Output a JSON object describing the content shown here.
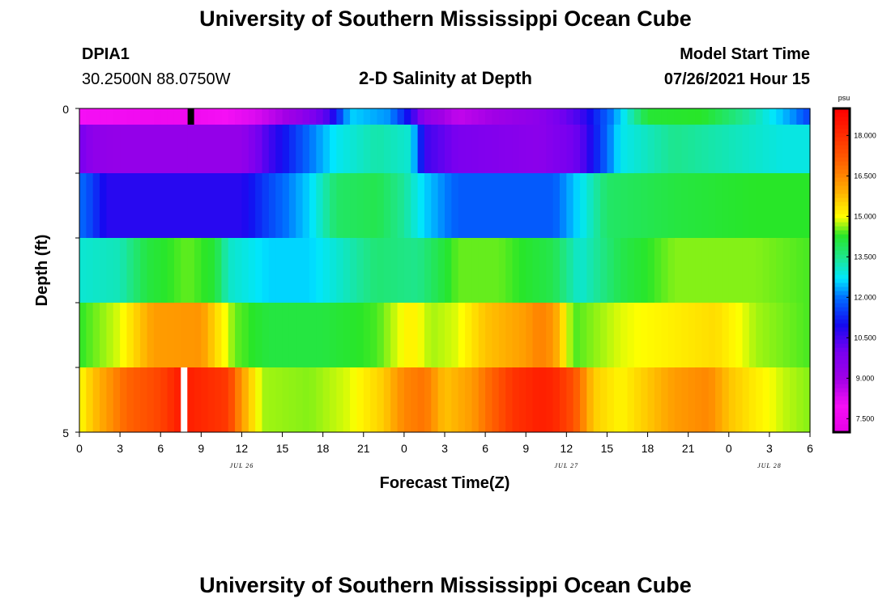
{
  "header": {
    "title_top": "University of Southern Mississippi Ocean Cube",
    "title_bottom": "University of Southern Mississippi Ocean Cube",
    "station_id": "DPIA1",
    "station_coords": "30.2500N  88.0750W",
    "plot_title": "2-D Salinity at Depth",
    "model_start_label": "Model Start Time",
    "model_start_value": "07/26/2021 Hour 15"
  },
  "chart_data": {
    "type": "heatmap",
    "title": "2-D Salinity at Depth",
    "xlabel": "Forecast Time(Z)",
    "ylabel": "Depth (ft)",
    "x_tick_labels": [
      "0",
      "3",
      "6",
      "9",
      "12",
      "15",
      "18",
      "21",
      "0",
      "3",
      "6",
      "9",
      "12",
      "15",
      "18",
      "21",
      "0",
      "3",
      "6"
    ],
    "date_labels": [
      {
        "label": "JUL 26",
        "hour": 12
      },
      {
        "label": "JUL 27",
        "hour": 36
      },
      {
        "label": "JUL 28",
        "hour": 51
      }
    ],
    "x_range_hours": [
      0,
      54
    ],
    "hour_step": 0.5,
    "y_range_ft": [
      0,
      5
    ],
    "y_tick_labels": [
      "0",
      "5"
    ],
    "depth_layers_ft": [
      0,
      0.5,
      1.5,
      2.5,
      3.5,
      4.5
    ],
    "colorbar": {
      "unit": "psu",
      "min": 7.0,
      "max": 19.0,
      "ticks": [
        "7.500",
        "9.000",
        "10.500",
        "12.000",
        "13.500",
        "15.000",
        "16.500",
        "18.000"
      ]
    },
    "salinity_keyframes": [
      {
        "depth_ft": 0,
        "hours": [
          0,
          6,
          8,
          13,
          16,
          18.5,
          20,
          23,
          24.5,
          25.5,
          28,
          34,
          37,
          39.5,
          42,
          46,
          50,
          53,
          54
        ],
        "psu": [
          8.0,
          7.6,
          7.6,
          8.3,
          9.2,
          10.5,
          12.6,
          12.2,
          10.8,
          9.4,
          8.6,
          9.5,
          10.5,
          12.2,
          14.2,
          14.3,
          13.2,
          12.1,
          11.5
        ]
      },
      {
        "depth_ft": 0.5,
        "hours": [
          0,
          1,
          3,
          12,
          14,
          17,
          19,
          22,
          24.5,
          25.5,
          28,
          34,
          37,
          40,
          44,
          52,
          54
        ],
        "psu": [
          10.0,
          9.4,
          9.3,
          9.3,
          10.5,
          12.0,
          12.8,
          13.3,
          13.0,
          10.6,
          9.9,
          9.5,
          10.2,
          12.8,
          13.5,
          12.9,
          12.9
        ]
      },
      {
        "depth_ft": 1.5,
        "hours": [
          0,
          1,
          2,
          12,
          14,
          17,
          19,
          22,
          24,
          25.5,
          28,
          35,
          37,
          39,
          44,
          50,
          54
        ],
        "psu": [
          12.0,
          11.5,
          10.8,
          10.8,
          11.6,
          12.6,
          13.8,
          14.0,
          13.4,
          12.6,
          11.8,
          11.8,
          12.7,
          13.8,
          14.1,
          14.3,
          14.3
        ]
      },
      {
        "depth_ft": 2.5,
        "hours": [
          0,
          3,
          5,
          8,
          10,
          11,
          14,
          17,
          19,
          22,
          25,
          28,
          31,
          35,
          37,
          40,
          44,
          50,
          54
        ],
        "psu": [
          13.0,
          13.2,
          14.1,
          14.5,
          14.2,
          13.1,
          12.6,
          12.6,
          13.0,
          13.7,
          13.5,
          14.5,
          14.5,
          14.0,
          13.0,
          14.0,
          14.6,
          14.6,
          14.4
        ]
      },
      {
        "depth_ft": 3.5,
        "hours": [
          0,
          3,
          4.5,
          5.5,
          9,
          10,
          11.5,
          14,
          18,
          22,
          24.5,
          26,
          28,
          30,
          33,
          34,
          35,
          36.5,
          40,
          44,
          47,
          50,
          54
        ],
        "psu": [
          14.3,
          14.9,
          15.7,
          16.2,
          16.3,
          15.5,
          14.5,
          14.1,
          14.1,
          14.4,
          15.2,
          14.7,
          14.9,
          15.7,
          16.2,
          16.6,
          16.3,
          14.4,
          14.9,
          15.2,
          15.4,
          14.7,
          14.4
        ]
      },
      {
        "depth_ft": 4.5,
        "hours": [
          0,
          1,
          2,
          3.5,
          6,
          7.5,
          11,
          12,
          13.5,
          17,
          20,
          22.5,
          24,
          25.5,
          27,
          29,
          32,
          34,
          35,
          36.5,
          38,
          40,
          44,
          46.5,
          48,
          50,
          52,
          54
        ],
        "psu": [
          15.0,
          15.7,
          16.2,
          17.0,
          17.6,
          18.4,
          17.8,
          16.2,
          14.7,
          14.6,
          14.9,
          15.6,
          16.5,
          16.8,
          15.7,
          16.2,
          17.9,
          18.3,
          18.2,
          17.4,
          15.6,
          15.1,
          16.2,
          16.5,
          15.7,
          15.2,
          14.8,
          14.6
        ]
      }
    ],
    "markers": [
      {
        "depth_ft": 0,
        "hour": 8,
        "kind": "black"
      },
      {
        "depth_ft": 4.5,
        "hour": 7.5,
        "kind": "white"
      }
    ]
  }
}
